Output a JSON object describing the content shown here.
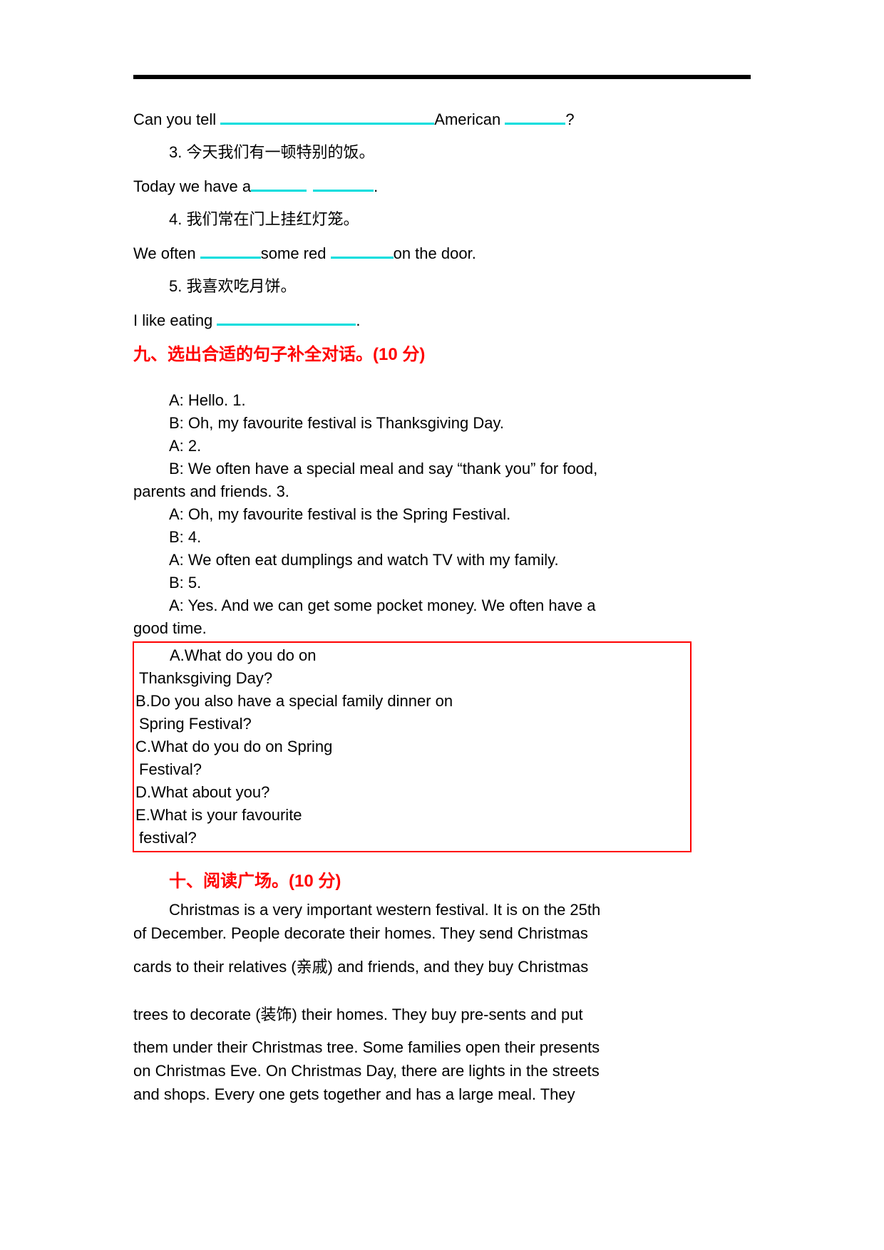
{
  "colors": {
    "accent_red": "#ff0000",
    "blank_cyan": "#00dddd",
    "rule_black": "#000000"
  },
  "fill_in": {
    "q2": {
      "pre": "Can you tell ",
      "mid": "American ",
      "end": "?"
    },
    "q3_cn": "3. 今天我们有一顿特别的饭。",
    "q3": {
      "pre": "Today we have a",
      "end": "."
    },
    "q4_cn": "4. 我们常在门上挂红灯笼。",
    "q4": {
      "pre": "We often ",
      "mid": "some red ",
      "end": "on the door."
    },
    "q5_cn": "5. 我喜欢吃月饼。",
    "q5": {
      "pre": "I like eating ",
      "end": "."
    }
  },
  "section9": {
    "heading": "九、选出合适的句子补全对话。(10 分)",
    "dialogue": [
      "A: Hello. 1.",
      "B: Oh, my favourite festival is Thanksgiving Day.",
      "A: 2.",
      "B: We often have a special meal and say “thank you” for food,",
      "parents and friends. 3.",
      "A: Oh, my favourite festival is the Spring Festival.",
      "B: 4.",
      "A: We often eat dumplings and watch TV with my family.",
      "B: 5.",
      "A: Yes. And we can get some pocket money. We often have a",
      "good time."
    ],
    "options": [
      "A.What do you do on",
      "Thanksgiving Day?",
      "B.Do you also have a special family dinner on",
      "Spring Festival?",
      "C.What do you do on Spring",
      "Festival?",
      "D.What about you?",
      "E.What is your favourite",
      "festival?"
    ]
  },
  "section10": {
    "heading": "十、阅读广场。(10 分)",
    "passage_lines": [
      "Christmas is a very important western festival. It is on the 25th",
      "of December. People decorate their homes. They send Christmas",
      "cards to their relatives (亲戚) and friends, and they buy Christmas",
      "trees to decorate (装饰) their homes. They buy pre-sents and put",
      "them under their Christmas tree. Some families open their presents",
      "on Christmas Eve. On Christmas Day, there are lights in the streets",
      "and shops. Every one gets together and has a large meal. They"
    ]
  }
}
